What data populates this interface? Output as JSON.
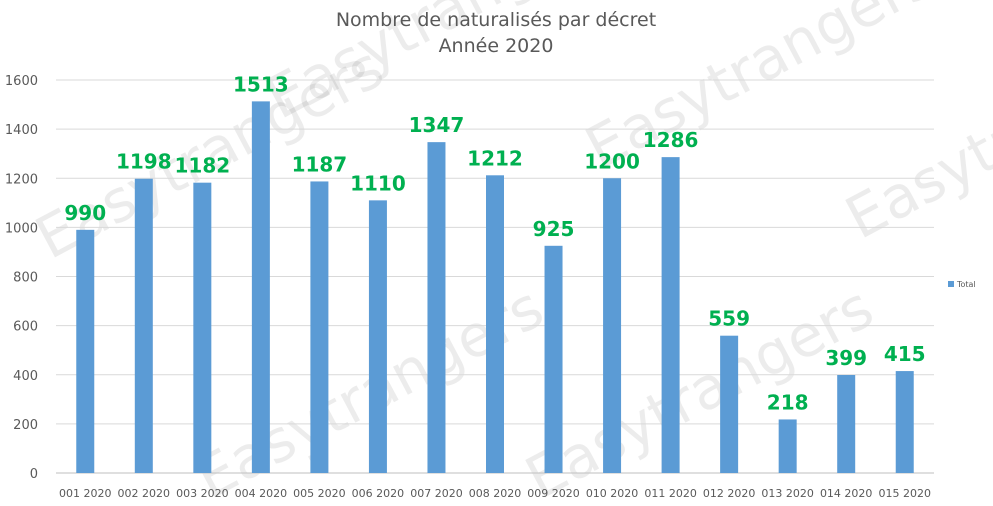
{
  "chart_data": {
    "type": "bar",
    "title": "Nombre de naturalisés par décret",
    "subtitle": "Année 2020",
    "categories": [
      "001 2020",
      "002 2020",
      "003 2020",
      "004 2020",
      "005 2020",
      "006 2020",
      "007 2020",
      "008 2020",
      "009 2020",
      "010 2020",
      "011 2020",
      "012 2020",
      "013 2020",
      "014 2020",
      "015 2020"
    ],
    "series": [
      {
        "name": "Total",
        "values": [
          990,
          1198,
          1182,
          1513,
          1187,
          1110,
          1347,
          1212,
          925,
          1200,
          1286,
          559,
          218,
          399,
          415
        ]
      }
    ],
    "data_labels": [
      "990",
      "1198",
      "1182",
      "1513",
      "1187",
      "1110",
      "1347",
      "1212",
      "925",
      "1200",
      "1286",
      "559",
      "218",
      "399",
      "415"
    ],
    "ylim": [
      0,
      1600
    ],
    "yticks": [
      "0",
      "200",
      "400",
      "600",
      "800",
      "1000",
      "1200",
      "1400",
      "1600"
    ],
    "grid": true,
    "legend_position": "right",
    "bar_color": "#5b9bd5",
    "label_color": "#00b050",
    "xlabel": "",
    "ylabel": ""
  },
  "watermark": {
    "text": "Easytrangers"
  }
}
